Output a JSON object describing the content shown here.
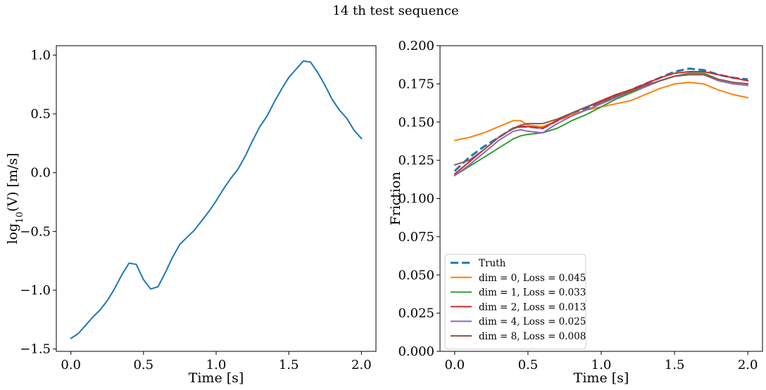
{
  "figure": {
    "title": "14 th test sequence"
  },
  "chart_data": [
    {
      "type": "line",
      "title": "",
      "xlabel": "Time [s]",
      "ylabel_main": "log",
      "ylabel_sub": "10",
      "ylabel_rest": "(V) [m/s]",
      "xlim": [
        -0.1,
        2.1
      ],
      "ylim": [
        -1.52,
        1.08
      ],
      "xticks": [
        0.0,
        0.5,
        1.0,
        1.5,
        2.0
      ],
      "xtick_labels": [
        "0.0",
        "0.5",
        "1.0",
        "1.5",
        "2.0"
      ],
      "yticks": [
        -1.5,
        -1.0,
        -0.5,
        0.0,
        0.5,
        1.0
      ],
      "ytick_labels": [
        "−1.5",
        "−1.0",
        "−0.5",
        "0.0",
        "0.5",
        "1.0"
      ],
      "grid": false,
      "series": [
        {
          "color": "#1f77b4",
          "x": [
            0.0,
            0.05,
            0.1,
            0.15,
            0.2,
            0.25,
            0.3,
            0.35,
            0.4,
            0.45,
            0.5,
            0.55,
            0.6,
            0.65,
            0.7,
            0.75,
            0.8,
            0.85,
            0.9,
            0.95,
            1.0,
            1.05,
            1.1,
            1.15,
            1.2,
            1.25,
            1.3,
            1.35,
            1.4,
            1.45,
            1.5,
            1.55,
            1.6,
            1.65,
            1.7,
            1.75,
            1.8,
            1.85,
            1.9,
            1.95,
            2.0
          ],
          "y": [
            -1.41,
            -1.37,
            -1.3,
            -1.23,
            -1.17,
            -1.09,
            -0.99,
            -0.87,
            -0.77,
            -0.78,
            -0.91,
            -0.99,
            -0.97,
            -0.85,
            -0.72,
            -0.61,
            -0.55,
            -0.49,
            -0.41,
            -0.33,
            -0.24,
            -0.14,
            -0.05,
            0.03,
            0.14,
            0.27,
            0.39,
            0.48,
            0.6,
            0.71,
            0.81,
            0.88,
            0.95,
            0.94,
            0.85,
            0.74,
            0.62,
            0.53,
            0.46,
            0.36,
            0.29
          ]
        }
      ]
    },
    {
      "type": "line",
      "title": "",
      "xlabel": "Time [s]",
      "ylabel": "Friction",
      "xlim": [
        -0.1,
        2.1
      ],
      "ylim": [
        0.0,
        0.2
      ],
      "xticks": [
        0.0,
        0.5,
        1.0,
        1.5,
        2.0
      ],
      "xtick_labels": [
        "0.0",
        "0.5",
        "1.0",
        "1.5",
        "2.0"
      ],
      "yticks": [
        0.0,
        0.025,
        0.05,
        0.075,
        0.1,
        0.125,
        0.15,
        0.175,
        0.2
      ],
      "ytick_labels": [
        "0.000",
        "0.025",
        "0.050",
        "0.075",
        "0.100",
        "0.125",
        "0.150",
        "0.175",
        "0.200"
      ],
      "grid": false,
      "legend_position": "lower-left",
      "x": [
        0.0,
        0.1,
        0.2,
        0.3,
        0.4,
        0.45,
        0.5,
        0.6,
        0.7,
        0.8,
        0.9,
        1.0,
        1.1,
        1.2,
        1.3,
        1.4,
        1.5,
        1.6,
        1.7,
        1.8,
        1.9,
        2.0
      ],
      "series": [
        {
          "name": "Truth",
          "color": "#1f77b4",
          "dashed": true,
          "y": [
            0.118,
            0.127,
            0.134,
            0.14,
            0.146,
            0.147,
            0.147,
            0.146,
            0.151,
            0.155,
            0.159,
            0.163,
            0.167,
            0.171,
            0.175,
            0.179,
            0.183,
            0.185,
            0.184,
            0.181,
            0.179,
            0.178
          ]
        },
        {
          "name": "dim = 0, Loss = 0.045",
          "color": "#ff7f0e",
          "y": [
            0.138,
            0.14,
            0.143,
            0.147,
            0.151,
            0.151,
            0.148,
            0.147,
            0.151,
            0.155,
            0.158,
            0.16,
            0.162,
            0.164,
            0.168,
            0.172,
            0.175,
            0.176,
            0.175,
            0.171,
            0.168,
            0.166
          ]
        },
        {
          "name": "dim = 1, Loss = 0.033",
          "color": "#2ca02c",
          "y": [
            0.115,
            0.121,
            0.127,
            0.133,
            0.139,
            0.141,
            0.142,
            0.143,
            0.146,
            0.151,
            0.155,
            0.16,
            0.165,
            0.169,
            0.173,
            0.177,
            0.18,
            0.182,
            0.182,
            0.178,
            0.176,
            0.175
          ]
        },
        {
          "name": "dim = 2, Loss = 0.013",
          "color": "#d62728",
          "y": [
            0.116,
            0.124,
            0.132,
            0.14,
            0.146,
            0.147,
            0.147,
            0.146,
            0.151,
            0.156,
            0.16,
            0.164,
            0.168,
            0.171,
            0.175,
            0.179,
            0.182,
            0.183,
            0.183,
            0.181,
            0.179,
            0.177
          ]
        },
        {
          "name": "dim = 4, Loss = 0.025",
          "color": "#9467bd",
          "y": [
            0.115,
            0.122,
            0.13,
            0.138,
            0.144,
            0.145,
            0.144,
            0.143,
            0.149,
            0.154,
            0.158,
            0.162,
            0.166,
            0.17,
            0.173,
            0.177,
            0.18,
            0.181,
            0.181,
            0.177,
            0.175,
            0.174
          ]
        },
        {
          "name": "dim = 8, Loss = 0.008",
          "color": "#8c564b",
          "y": [
            0.122,
            0.125,
            0.132,
            0.14,
            0.146,
            0.148,
            0.149,
            0.149,
            0.152,
            0.156,
            0.16,
            0.163,
            0.167,
            0.17,
            0.174,
            0.177,
            0.18,
            0.181,
            0.181,
            0.178,
            0.176,
            0.175
          ]
        }
      ]
    }
  ]
}
